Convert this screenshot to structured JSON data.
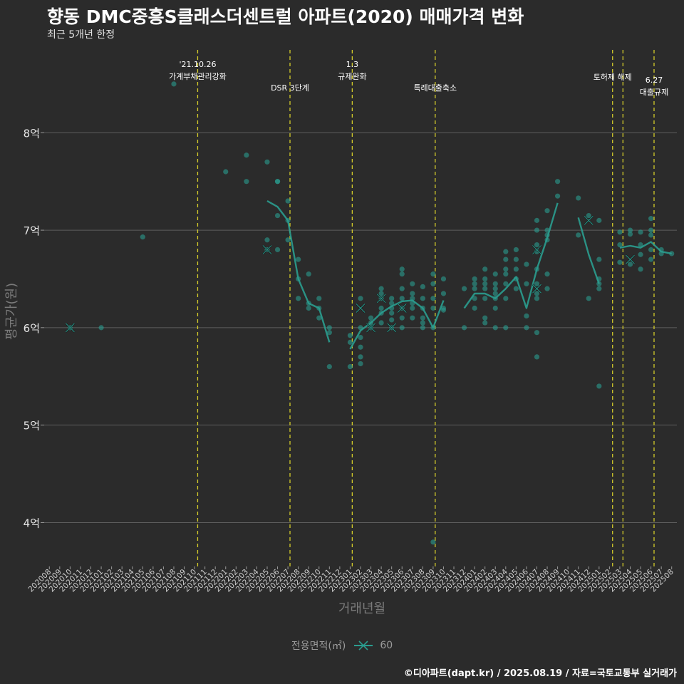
{
  "chart_data": {
    "type": "scatter",
    "title": "향동 DMC중흥S클래스더센트럴 아파트(2020) 매매가격 변화",
    "subtitle": "최근 5개년 한정",
    "xlabel": "거래년월",
    "ylabel": "평균가(원)",
    "ylim": [
      3.55,
      8.85
    ],
    "y_ticks": [
      4,
      5,
      6,
      7,
      8
    ],
    "y_tick_labels": [
      "4억",
      "5억",
      "6억",
      "7억",
      "8억"
    ],
    "grid": true,
    "legend_position": "bottom",
    "legend_title": "전용면적(㎡)",
    "legend_entries": [
      "60"
    ],
    "months": [
      "202008",
      "202009",
      "202010",
      "202011",
      "202012",
      "202101",
      "202102",
      "202103",
      "202104",
      "202105",
      "202106",
      "202107",
      "202108",
      "202109",
      "202110",
      "202111",
      "202112",
      "202201",
      "202202",
      "202203",
      "202204",
      "202205",
      "202206",
      "202207",
      "202208",
      "202209",
      "202210",
      "202211",
      "202212",
      "202301",
      "202302",
      "202303",
      "202304",
      "202305",
      "202306",
      "202307",
      "202308",
      "202309",
      "202310",
      "202311",
      "202312",
      "202401",
      "202402",
      "202403",
      "202404",
      "202405",
      "202406",
      "202407",
      "202408",
      "202409",
      "202410",
      "202411",
      "202412",
      "202501",
      "202502",
      "202503",
      "202504",
      "202505",
      "202506",
      "202507",
      "202508"
    ],
    "events": [
      {
        "month_pos": 14.3,
        "label_lines": [
          "'21.10.26",
          "가계부채관리강화"
        ],
        "label_row": 0
      },
      {
        "month_pos": 23.2,
        "label_lines": [
          "DSR 3단계"
        ],
        "label_row": 2
      },
      {
        "month_pos": 29.2,
        "label_lines": [
          "1.3",
          "규제완화"
        ],
        "label_row": 0
      },
      {
        "month_pos": 37.2,
        "label_lines": [
          "특례대출축소"
        ],
        "label_row": 2
      },
      {
        "month_pos": 54.3,
        "label_lines": [
          "토허제 해제"
        ],
        "label_row": 1
      },
      {
        "month_pos": 55.3,
        "label_lines": [],
        "label_row": 0
      },
      {
        "month_pos": 58.3,
        "label_lines": [
          "6.27",
          "대출규제"
        ],
        "label_row": 3
      }
    ],
    "series": [
      {
        "name": "60",
        "color": "#2a9d8f",
        "points": [
          [
            "202010",
            6.0
          ],
          [
            "202101",
            6.0
          ],
          [
            "202105",
            6.93
          ],
          [
            "202108",
            8.5
          ],
          [
            "202201",
            7.6
          ],
          [
            "202203",
            7.5
          ],
          [
            "202203",
            7.77
          ],
          [
            "202205",
            7.7
          ],
          [
            "202205",
            6.9
          ],
          [
            "202205",
            6.8
          ],
          [
            "202206",
            7.5
          ],
          [
            "202206",
            7.5
          ],
          [
            "202206",
            7.15
          ],
          [
            "202206",
            6.8
          ],
          [
            "202207",
            7.3
          ],
          [
            "202207",
            7.1
          ],
          [
            "202207",
            6.9
          ],
          [
            "202208",
            6.7
          ],
          [
            "202208",
            6.5
          ],
          [
            "202208",
            6.3
          ],
          [
            "202209",
            6.55
          ],
          [
            "202209",
            6.25
          ],
          [
            "202209",
            6.2
          ],
          [
            "202210",
            6.3
          ],
          [
            "202210",
            6.2
          ],
          [
            "202210",
            6.1
          ],
          [
            "202211",
            5.6
          ],
          [
            "202211",
            6.0
          ],
          [
            "202211",
            5.95
          ],
          [
            "202301",
            5.92
          ],
          [
            "202301",
            5.85
          ],
          [
            "202301",
            5.6
          ],
          [
            "202302",
            6.3
          ],
          [
            "202302",
            6.0
          ],
          [
            "202302",
            5.9
          ],
          [
            "202302",
            5.8
          ],
          [
            "202302",
            5.7
          ],
          [
            "202302",
            5.63
          ],
          [
            "202303",
            6.05
          ],
          [
            "202303",
            6.0
          ],
          [
            "202303",
            6.1
          ],
          [
            "202304",
            6.3
          ],
          [
            "202304",
            6.4
          ],
          [
            "202304",
            6.35
          ],
          [
            "202304",
            6.2
          ],
          [
            "202304",
            6.15
          ],
          [
            "202304",
            6.05
          ],
          [
            "202305",
            6.3
          ],
          [
            "202305",
            6.25
          ],
          [
            "202305",
            6.2
          ],
          [
            "202305",
            6.15
          ],
          [
            "202305",
            6.08
          ],
          [
            "202305",
            6.0
          ],
          [
            "202306",
            6.6
          ],
          [
            "202306",
            6.55
          ],
          [
            "202306",
            6.4
          ],
          [
            "202306",
            6.3
          ],
          [
            "202306",
            6.2
          ],
          [
            "202306",
            6.1
          ],
          [
            "202306",
            6.0
          ],
          [
            "202307",
            6.45
          ],
          [
            "202307",
            6.35
          ],
          [
            "202307",
            6.3
          ],
          [
            "202307",
            6.25
          ],
          [
            "202307",
            6.2
          ],
          [
            "202307",
            6.1
          ],
          [
            "202308",
            6.42
          ],
          [
            "202308",
            6.3
          ],
          [
            "202308",
            6.2
          ],
          [
            "202308",
            6.1
          ],
          [
            "202308",
            6.05
          ],
          [
            "202308",
            6.0
          ],
          [
            "202309",
            6.55
          ],
          [
            "202309",
            6.45
          ],
          [
            "202309",
            6.3
          ],
          [
            "202309",
            6.2
          ],
          [
            "202309",
            6.0
          ],
          [
            "202309",
            3.8
          ],
          [
            "202310",
            6.5
          ],
          [
            "202310",
            6.35
          ],
          [
            "202310",
            6.2
          ],
          [
            "202310",
            6.18
          ],
          [
            "202312",
            6.0
          ],
          [
            "202312",
            6.4
          ],
          [
            "202401",
            6.5
          ],
          [
            "202401",
            6.45
          ],
          [
            "202401",
            6.4
          ],
          [
            "202401",
            6.3
          ],
          [
            "202401",
            6.2
          ],
          [
            "202402",
            6.6
          ],
          [
            "202402",
            6.5
          ],
          [
            "202402",
            6.45
          ],
          [
            "202402",
            6.4
          ],
          [
            "202402",
            6.3
          ],
          [
            "202402",
            6.1
          ],
          [
            "202402",
            6.05
          ],
          [
            "202403",
            6.55
          ],
          [
            "202403",
            6.45
          ],
          [
            "202403",
            6.4
          ],
          [
            "202403",
            6.35
          ],
          [
            "202403",
            6.3
          ],
          [
            "202403",
            6.2
          ],
          [
            "202403",
            6.0
          ],
          [
            "202404",
            6.78
          ],
          [
            "202404",
            6.7
          ],
          [
            "202404",
            6.6
          ],
          [
            "202404",
            6.55
          ],
          [
            "202404",
            6.45
          ],
          [
            "202404",
            6.3
          ],
          [
            "202404",
            6.0
          ],
          [
            "202405",
            6.8
          ],
          [
            "202405",
            6.7
          ],
          [
            "202405",
            6.6
          ],
          [
            "202405",
            6.5
          ],
          [
            "202405",
            6.4
          ],
          [
            "202406",
            6.65
          ],
          [
            "202406",
            6.45
          ],
          [
            "202406",
            6.12
          ],
          [
            "202406",
            6.0
          ],
          [
            "202407",
            7.1
          ],
          [
            "202407",
            7.0
          ],
          [
            "202407",
            6.85
          ],
          [
            "202407",
            6.78
          ],
          [
            "202407",
            6.6
          ],
          [
            "202407",
            6.45
          ],
          [
            "202407",
            6.35
          ],
          [
            "202407",
            6.3
          ],
          [
            "202407",
            5.95
          ],
          [
            "202407",
            5.7
          ],
          [
            "202408",
            7.2
          ],
          [
            "202408",
            7.0
          ],
          [
            "202408",
            6.95
          ],
          [
            "202408",
            6.9
          ],
          [
            "202408",
            6.55
          ],
          [
            "202408",
            6.4
          ],
          [
            "202409",
            7.5
          ],
          [
            "202409",
            7.35
          ],
          [
            "202411",
            7.33
          ],
          [
            "202411",
            6.95
          ],
          [
            "202412",
            7.15
          ],
          [
            "202412",
            6.3
          ],
          [
            "202501",
            7.1
          ],
          [
            "202501",
            6.7
          ],
          [
            "202501",
            6.5
          ],
          [
            "202501",
            6.45
          ],
          [
            "202501",
            6.4
          ],
          [
            "202501",
            5.4
          ],
          [
            "202503",
            6.98
          ],
          [
            "202503",
            6.85
          ],
          [
            "202503",
            6.67
          ],
          [
            "202504",
            7.0
          ],
          [
            "202504",
            6.96
          ],
          [
            "202504",
            6.65
          ],
          [
            "202505",
            6.98
          ],
          [
            "202505",
            6.85
          ],
          [
            "202505",
            6.75
          ],
          [
            "202505",
            6.6
          ],
          [
            "202506",
            7.12
          ],
          [
            "202506",
            7.0
          ],
          [
            "202506",
            6.95
          ],
          [
            "202506",
            6.8
          ],
          [
            "202506",
            6.7
          ],
          [
            "202507",
            6.8
          ],
          [
            "202507",
            6.76
          ],
          [
            "202508",
            6.76
          ]
        ],
        "averages": [
          [
            "202010",
            6.0
          ],
          [
            "202205",
            6.8
          ],
          [
            "202302",
            6.2
          ],
          [
            "202303",
            6.0
          ],
          [
            "202304",
            6.3
          ],
          [
            "202305",
            6.0
          ],
          [
            "202306",
            6.2
          ],
          [
            "202407",
            6.4
          ],
          [
            "202407",
            6.8
          ],
          [
            "202412",
            7.1
          ],
          [
            "202504",
            6.7
          ]
        ],
        "trend_segments": [
          [
            [
              "202205",
              7.3
            ],
            [
              "202206",
              7.24
            ],
            [
              "202207",
              7.1
            ],
            [
              "202208",
              6.5
            ],
            [
              "202209",
              6.25
            ],
            [
              "202210",
              6.2
            ],
            [
              "202211",
              5.85
            ]
          ],
          [
            [
              "202301",
              5.78
            ],
            [
              "202302",
              5.97
            ],
            [
              "202303",
              6.05
            ],
            [
              "202304",
              6.15
            ],
            [
              "202305",
              6.22
            ],
            [
              "202306",
              6.27
            ],
            [
              "202307",
              6.28
            ],
            [
              "202308",
              6.2
            ],
            [
              "202309",
              6.0
            ],
            [
              "202310",
              6.28
            ]
          ],
          [
            [
              "202312",
              6.2
            ],
            [
              "202401",
              6.35
            ],
            [
              "202402",
              6.35
            ],
            [
              "202403",
              6.3
            ],
            [
              "202404",
              6.4
            ],
            [
              "202405",
              6.52
            ],
            [
              "202406",
              6.2
            ],
            [
              "202407",
              6.6
            ],
            [
              "202408",
              6.92
            ],
            [
              "202409",
              7.28
            ]
          ],
          [
            [
              "202411",
              7.13
            ],
            [
              "202412",
              6.75
            ],
            [
              "202501",
              6.45
            ]
          ],
          [
            [
              "202503",
              6.82
            ],
            [
              "202504",
              6.84
            ],
            [
              "202505",
              6.82
            ],
            [
              "202506",
              6.88
            ],
            [
              "202507",
              6.78
            ],
            [
              "202508",
              6.76
            ]
          ]
        ]
      }
    ]
  },
  "caption": "©디아파트(dapt.kr) / 2025.08.19 / 자료=국토교통부 실거래가",
  "legend": {
    "title": "전용면적(㎡)",
    "item": "60"
  },
  "colors": {
    "background": "#2b2b2b",
    "grid": "#5e5e5e",
    "series": "#2a9d8f",
    "event_line": "#d4cc2a",
    "text": "#e6e6e6",
    "axis_title": "#7a7a7a"
  }
}
